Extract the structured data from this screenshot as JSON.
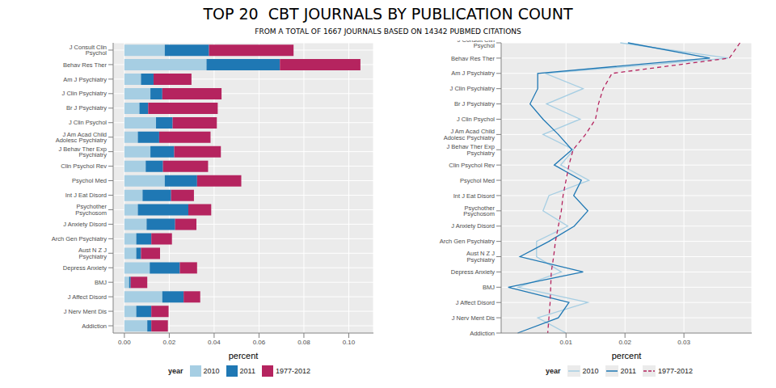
{
  "title": "TOP 20  CBT JOURNALS BY PUBLICATION COUNT",
  "subtitle": "FROM A TOTAL OF 1667 JOURNALS BASED ON 14342 PUBMED CITATIONS",
  "chart_data": [
    {
      "type": "bar",
      "orientation": "horizontal",
      "stacked": true,
      "grid": true,
      "legend": "bottom",
      "legend_title": "year",
      "xlabel": "percent",
      "categories": [
        "J Consult Clin Psychol",
        "Behav Res Ther",
        "Am J Psychiatry",
        "J Clin Psychiatry",
        "Br J Psychiatry",
        "J Clin Psychol",
        "J Am Acad Child Adolesc Psychiatry",
        "J Behav Ther Exp Psychiatry",
        "Clin Psychol Rev",
        "Psychol Med",
        "Int J Eat Disord",
        "Psychother Psychosom",
        "J Anxiety Disord",
        "Arch Gen Psychiatry",
        "Aust N Z J Psychiatry",
        "Depress Anxiety",
        "BMJ",
        "J Affect Disord",
        "J Nerv Ment Dis",
        "Addiction"
      ],
      "series": [
        {
          "name": "2010",
          "color": "#a6cee3",
          "values": [
            0.018,
            0.0366,
            0.0074,
            0.0116,
            0.0067,
            0.0141,
            0.006,
            0.0116,
            0.0095,
            0.018,
            0.0081,
            0.006,
            0.0099,
            0.0053,
            0.0053,
            0.0113,
            0.0021,
            0.0169,
            0.0053,
            0.0102
          ]
        },
        {
          "name": "2011",
          "color": "#1f78b4",
          "values": [
            0.0197,
            0.0327,
            0.0056,
            0.0053,
            0.0039,
            0.0074,
            0.0095,
            0.0106,
            0.0077,
            0.0144,
            0.0127,
            0.0225,
            0.0127,
            0.0067,
            0.0021,
            0.0134,
            0.0007,
            0.0095,
            0.0067,
            0.0018
          ]
        },
        {
          "name": "1977-2012",
          "color": "#b5245f",
          "values": [
            0.0377,
            0.0359,
            0.0169,
            0.0264,
            0.031,
            0.0197,
            0.0229,
            0.0208,
            0.0201,
            0.0197,
            0.0102,
            0.0102,
            0.0095,
            0.0092,
            0.0085,
            0.0077,
            0.0074,
            0.0074,
            0.0077,
            0.0074
          ]
        }
      ],
      "xlim": [
        -0.005,
        0.111
      ],
      "xticks": [
        {
          "value": 0,
          "label": "0.00"
        },
        0.02,
        0.04,
        0.06,
        0.08,
        {
          "value": 0.1,
          "label": "0.10"
        }
      ]
    },
    {
      "type": "line",
      "grid": true,
      "legend": "bottom",
      "legend_title": "year",
      "xlabel": "percent",
      "categories": [
        "J Consult Clin Psychol",
        "Behav Res Ther",
        "Am J Psychiatry",
        "J Clin Psychiatry",
        "Br J Psychiatry",
        "J Clin Psychol",
        "J Am Acad Child Adolesc Psychiatry",
        "J Behav Ther Exp Psychiatry",
        "Clin Psychol Rev",
        "Psychol Med",
        "Int J Eat Disord",
        "Psychother Psychosom",
        "J Anxiety Disord",
        "Arch Gen Psychiatry",
        "Aust N Z J Psychiatry",
        "Depress Anxiety",
        "BMJ",
        "J Affect Disord",
        "J Nerv Ment Dis",
        "Addiction"
      ],
      "series": [
        {
          "name": "2010",
          "color": "#a6cee3",
          "line_style": "solid",
          "values": [
            0.0192,
            0.0375,
            0.0065,
            0.0129,
            0.0067,
            0.0124,
            0.0061,
            0.0113,
            0.0091,
            0.0139,
            0.0071,
            0.0061,
            0.0103,
            0.005,
            0.005,
            0.0092,
            0.0019,
            0.0137,
            0.0052,
            0.01
          ]
        },
        {
          "name": "2011",
          "color": "#1f78b4",
          "line_style": "solid",
          "values": [
            0.0205,
            0.0344,
            0.0052,
            0.0052,
            0.0039,
            0.0061,
            0.0087,
            0.011,
            0.008,
            0.0126,
            0.0113,
            0.0137,
            0.0114,
            0.0071,
            0.0022,
            0.0129,
            0.0002,
            0.0105,
            0.0087,
            0.0018
          ]
        },
        {
          "name": "1977-2012",
          "color": "#b5245f",
          "line_style": "dashed",
          "values": [
            0.0395,
            0.0377,
            0.0178,
            0.0163,
            0.0155,
            0.015,
            0.0133,
            0.0112,
            0.0105,
            0.01,
            0.0095,
            0.0092,
            0.0087,
            0.0082,
            0.0079,
            0.0075,
            0.0074,
            0.0073,
            0.0071,
            0.0069
          ]
        }
      ],
      "xlim": [
        -0.001,
        0.0415
      ],
      "xticks": [
        0.01,
        0.02,
        0.03
      ]
    }
  ]
}
